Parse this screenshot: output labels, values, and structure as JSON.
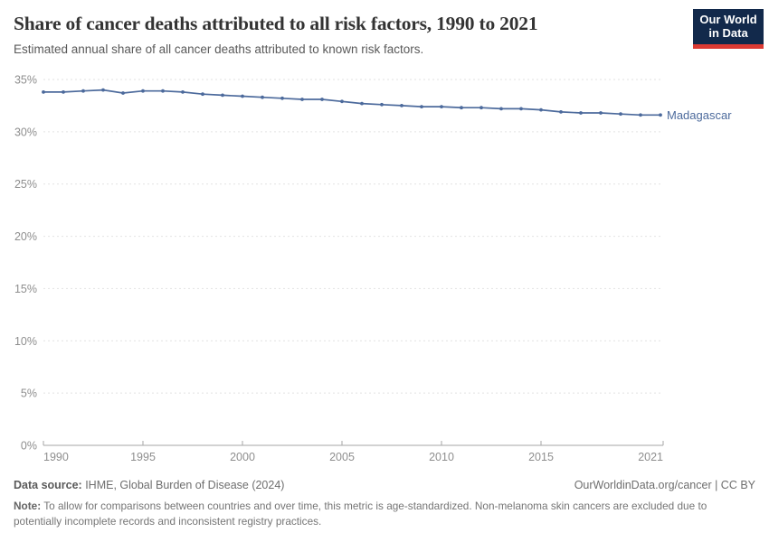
{
  "header": {
    "title": "Share of cancer deaths attributed to all risk factors, 1990 to 2021",
    "subtitle": "Estimated annual share of all cancer deaths attributed to known risk factors.",
    "logo_line1": "Our World",
    "logo_line2": "in Data"
  },
  "chart_data": {
    "type": "line",
    "title": "Share of cancer deaths attributed to all risk factors, 1990 to 2021",
    "xlabel": "",
    "ylabel": "",
    "xlim": [
      1990,
      2021
    ],
    "ylim": [
      0,
      35
    ],
    "x_ticks": [
      1990,
      1995,
      2000,
      2005,
      2010,
      2015,
      2021
    ],
    "y_ticks": [
      0,
      5,
      10,
      15,
      20,
      25,
      30,
      35
    ],
    "y_tick_suffix": "%",
    "grid": true,
    "legend_position": "end-of-line",
    "x": [
      1990,
      1991,
      1992,
      1993,
      1994,
      1995,
      1996,
      1997,
      1998,
      1999,
      2000,
      2001,
      2002,
      2003,
      2004,
      2005,
      2006,
      2007,
      2008,
      2009,
      2010,
      2011,
      2012,
      2013,
      2014,
      2015,
      2016,
      2017,
      2018,
      2019,
      2020,
      2021
    ],
    "series": [
      {
        "name": "Madagascar",
        "color": "#4c6a9c",
        "values": [
          33.8,
          33.8,
          33.9,
          34.0,
          33.7,
          33.9,
          33.9,
          33.8,
          33.6,
          33.5,
          33.4,
          33.3,
          33.2,
          33.1,
          33.1,
          32.9,
          32.7,
          32.6,
          32.5,
          32.4,
          32.4,
          32.3,
          32.3,
          32.2,
          32.2,
          32.1,
          31.9,
          31.8,
          31.8,
          31.7,
          31.6,
          31.6
        ]
      }
    ]
  },
  "footer": {
    "data_source_label": "Data source:",
    "data_source_text": " IHME, Global Burden of Disease (2024)",
    "credit": "OurWorldinData.org/cancer | CC BY",
    "note_label": "Note:",
    "note_text": " To allow for comparisons between countries and over time, this metric is age-standardized. Non-melanoma skin cancers are excluded due to potentially incomplete records and inconsistent registry practices."
  },
  "colors": {
    "line": "#4c6a9c",
    "entity_label": "#4c6a9c",
    "grid": "#e2e2e2",
    "axis": "#a5a5a5",
    "tick_label": "#8e8e8e",
    "logo_bg": "#12294b",
    "logo_accent": "#dc3a33"
  }
}
